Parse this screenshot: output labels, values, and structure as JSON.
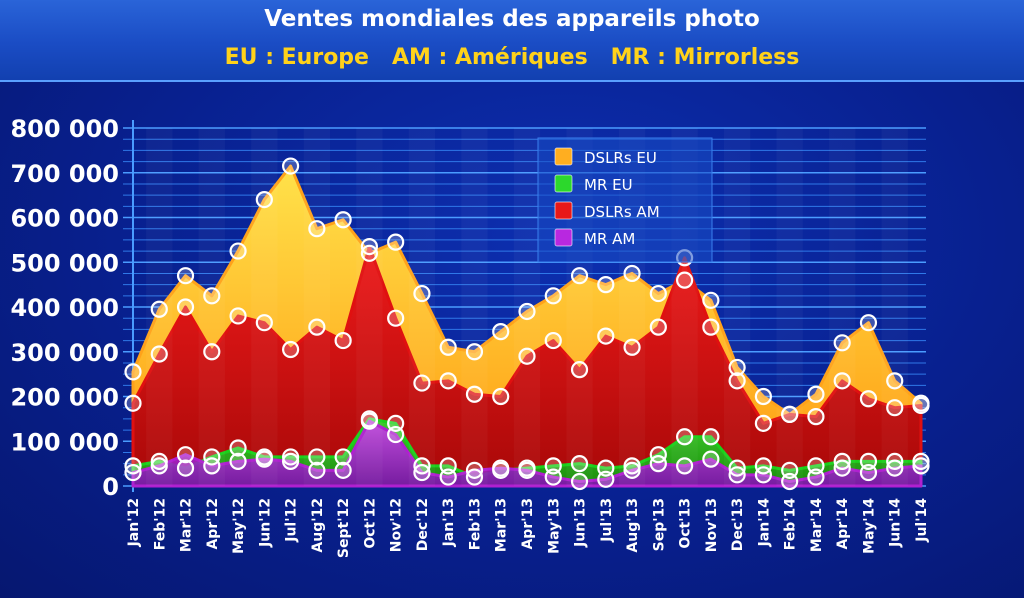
{
  "title": "Ventes mondiales des appareils photo",
  "subtitle": "EU : Europe   AM : Amériques   MR : Mirrorless",
  "chart_data": {
    "type": "area",
    "categories": [
      "Jan'12",
      "Feb'12",
      "Mar'12",
      "Apr'12",
      "May'12",
      "Jun'12",
      "Jul'12",
      "Aug'12",
      "Sept'12",
      "Oct'12",
      "Nov'12",
      "Dec'12",
      "Jan'13",
      "Feb'13",
      "Mar'13",
      "Apr'13",
      "May'13",
      "Jun'13",
      "Jul'13",
      "Aug'13",
      "Sep'13",
      "Oct'13",
      "Nov'13",
      "Dec'13",
      "Jan'14",
      "Feb'14",
      "Mar'14",
      "Apr'14",
      "May'14",
      "Jun'14",
      "Jul'14"
    ],
    "yticks": [
      "0",
      "100 000",
      "200 000",
      "300 000",
      "400 000",
      "500 000",
      "600 000",
      "700 000",
      "800 000"
    ],
    "ylim": [
      0,
      800000
    ],
    "grid": true,
    "legend_position": "top-center",
    "series": [
      {
        "name": "DSLRs EU",
        "color": "#ffa21a",
        "values": [
          255000,
          395000,
          470000,
          425000,
          525000,
          640000,
          715000,
          575000,
          595000,
          520000,
          545000,
          430000,
          310000,
          300000,
          345000,
          390000,
          425000,
          470000,
          450000,
          475000,
          430000,
          460000,
          415000,
          265000,
          200000,
          160000,
          205000,
          320000,
          365000,
          235000,
          185000
        ]
      },
      {
        "name": "MR EU",
        "color": "#1ad01a",
        "values": [
          45000,
          55000,
          40000,
          65000,
          85000,
          65000,
          65000,
          65000,
          65000,
          150000,
          140000,
          45000,
          45000,
          20000,
          35000,
          40000,
          45000,
          50000,
          40000,
          45000,
          70000,
          110000,
          110000,
          40000,
          45000,
          35000,
          45000,
          55000,
          55000,
          55000,
          55000
        ]
      },
      {
        "name": "DSLRs AM",
        "color": "#e01010",
        "values": [
          185000,
          295000,
          400000,
          300000,
          380000,
          365000,
          305000,
          355000,
          325000,
          535000,
          375000,
          230000,
          235000,
          205000,
          200000,
          290000,
          325000,
          260000,
          335000,
          310000,
          355000,
          510000,
          355000,
          235000,
          140000,
          160000,
          155000,
          235000,
          195000,
          175000,
          180000
        ]
      },
      {
        "name": "MR AM",
        "color": "#b020d0",
        "values": [
          30000,
          45000,
          70000,
          45000,
          55000,
          60000,
          55000,
          35000,
          35000,
          145000,
          115000,
          30000,
          20000,
          35000,
          40000,
          35000,
          20000,
          10000,
          15000,
          35000,
          50000,
          45000,
          60000,
          25000,
          25000,
          10000,
          20000,
          40000,
          30000,
          40000,
          45000
        ]
      }
    ]
  }
}
